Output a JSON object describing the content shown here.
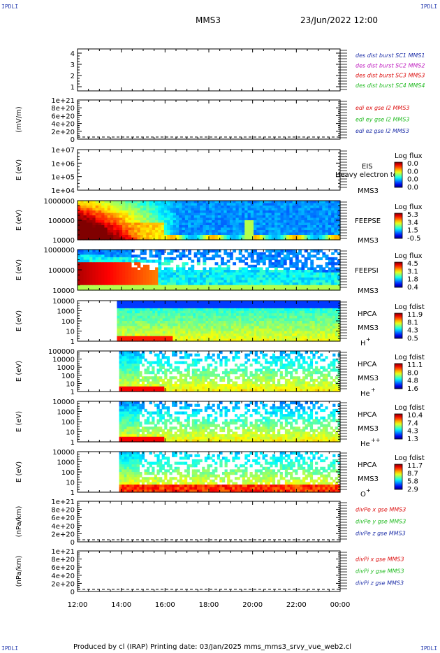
{
  "page": {
    "corner_label": "IPDLI",
    "mission": "MMS3",
    "datetime": "23/Jun/2022 12:00",
    "footer": "Produced by cl (IRAP)   Printing date: 03/Jan/2025   mms_mms3_srvy_vue_web2.cl"
  },
  "colors": {
    "blue": "#2233aa",
    "magenta": "#c020c0",
    "red": "#dd1111",
    "green": "#22bb22"
  },
  "chart_data": {
    "type": "heatmap",
    "x_axis": {
      "ticks": [
        "12:00",
        "14:00",
        "16:00",
        "18:00",
        "20:00",
        "22:00",
        "00:00"
      ],
      "range_hours": [
        12,
        24
      ]
    },
    "panels": [
      {
        "id": "des",
        "kind": "line",
        "ylabel": "",
        "yticks": [
          "4",
          "3",
          "2",
          "1"
        ],
        "legend": [
          {
            "text": "des dist burst SC1 MMS1",
            "color": "#2233aa"
          },
          {
            "text": "des dist burst SC2 MMS2",
            "color": "#c020c0"
          },
          {
            "text": "des dist burst SC3 MMS3",
            "color": "#dd1111"
          },
          {
            "text": "des dist burst SC4 MMS4",
            "color": "#22bb22"
          }
        ]
      },
      {
        "id": "edi",
        "kind": "line",
        "ylabel": "(mV/m)",
        "yticks": [
          "1e+21",
          "8e+20",
          "6e+20",
          "4e+20",
          "2e+20",
          "0"
        ],
        "zero_line": true,
        "legend": [
          {
            "text": "edi ex gse l2 MMS3",
            "color": "#dd1111"
          },
          {
            "text": "edi ey gse l2 MMS3",
            "color": "#22bb22"
          },
          {
            "text": "edi ez gse l2 MMS3",
            "color": "#2233aa"
          }
        ]
      },
      {
        "id": "eis",
        "kind": "spectrogram",
        "ylabel": "E (eV)",
        "yticks": [
          "1e+07",
          "1e+06",
          "1e+05",
          "1e+04"
        ],
        "instrument": "EIS",
        "subtitle": "Heavy electron to",
        "spacecraft": "MMS3",
        "cbar_title": "Log flux",
        "cbar_ticks": [
          "0.0",
          "0.0",
          "0.0",
          "0.0"
        ],
        "empty": true
      },
      {
        "id": "feepse",
        "kind": "spectrogram",
        "ylabel": "E (eV)",
        "yticks": [
          "1000000",
          "100000",
          "10000"
        ],
        "instrument": "FEEPSE",
        "spacecraft": "MMS3",
        "cbar_title": "Log flux",
        "cbar_ticks": [
          "5.3",
          "3.4",
          "1.5",
          "-0.5"
        ],
        "start_hour": 12.0,
        "sparse": false,
        "species": ""
      },
      {
        "id": "feepsi",
        "kind": "spectrogram",
        "ylabel": "E (eV)",
        "yticks": [
          "1000000",
          "100000",
          "10000"
        ],
        "instrument": "FEEPSI",
        "spacecraft": "MMS3",
        "cbar_title": "Log flux",
        "cbar_ticks": [
          "4.5",
          "3.1",
          "1.8",
          "0.4"
        ],
        "start_hour": 12.0,
        "sparse": true,
        "species": ""
      },
      {
        "id": "hpca_h",
        "kind": "spectrogram",
        "ylabel": "E (eV)",
        "yticks": [
          "10000",
          "1000",
          "100",
          "10",
          "1"
        ],
        "instrument": "HPCA",
        "spacecraft": "MMS3",
        "species": "H",
        "species_sup": "+",
        "cbar_title": "Log fdist",
        "cbar_ticks": [
          "11.9",
          "8.1",
          "4.3",
          "0.5"
        ],
        "start_hour": 13.8,
        "sparse": false
      },
      {
        "id": "hpca_he",
        "kind": "spectrogram",
        "ylabel": "E (eV)",
        "yticks": [
          "100000",
          "10000",
          "1000",
          "100",
          "10",
          "1"
        ],
        "instrument": "HPCA",
        "spacecraft": "MMS3",
        "species": "He",
        "species_sup": "+",
        "cbar_title": "Log fdist",
        "cbar_ticks": [
          "11.1",
          "8.0",
          "4.8",
          "1.6"
        ],
        "start_hour": 13.9,
        "sparse": true
      },
      {
        "id": "hpca_hepp",
        "kind": "spectrogram",
        "ylabel": "E (eV)",
        "yticks": [
          "10000",
          "1000",
          "100",
          "10",
          "1"
        ],
        "instrument": "HPCA",
        "spacecraft": "MMS3",
        "species": "He",
        "species_sup": "++",
        "cbar_title": "Log fdist",
        "cbar_ticks": [
          "10.4",
          "7.4",
          "4.3",
          "1.3"
        ],
        "start_hour": 13.9,
        "sparse": true
      },
      {
        "id": "hpca_o",
        "kind": "spectrogram",
        "ylabel": "E (eV)",
        "yticks": [
          "10000",
          "1000",
          "100",
          "10",
          "1"
        ],
        "instrument": "HPCA",
        "spacecraft": "MMS3",
        "species": "O",
        "species_sup": "+",
        "cbar_title": "Log fdist",
        "cbar_ticks": [
          "11.7",
          "8.7",
          "5.8",
          "2.9"
        ],
        "start_hour": 13.9,
        "sparse": true
      },
      {
        "id": "divpe",
        "kind": "line",
        "ylabel": "(nPa/km)",
        "yticks": [
          "1e+21",
          "8e+20",
          "6e+20",
          "4e+20",
          "2e+20",
          "0"
        ],
        "zero_line": true,
        "legend": [
          {
            "text": "divPe x gse MMS3",
            "color": "#dd1111"
          },
          {
            "text": "divPe y gse MMS3",
            "color": "#22bb22"
          },
          {
            "text": "divPe z gse MMS3",
            "color": "#2233aa"
          }
        ]
      },
      {
        "id": "divpi",
        "kind": "line",
        "ylabel": "(nPa/km)",
        "yticks": [
          "1e+21",
          "8e+20",
          "6e+20",
          "4e+20",
          "2e+20",
          "0"
        ],
        "zero_line": true,
        "legend": [
          {
            "text": "divPi x gse MMS3",
            "color": "#dd1111"
          },
          {
            "text": "divPi y gse MMS3",
            "color": "#22bb22"
          },
          {
            "text": "divPi z gse MMS3",
            "color": "#2233aa"
          }
        ]
      }
    ]
  }
}
